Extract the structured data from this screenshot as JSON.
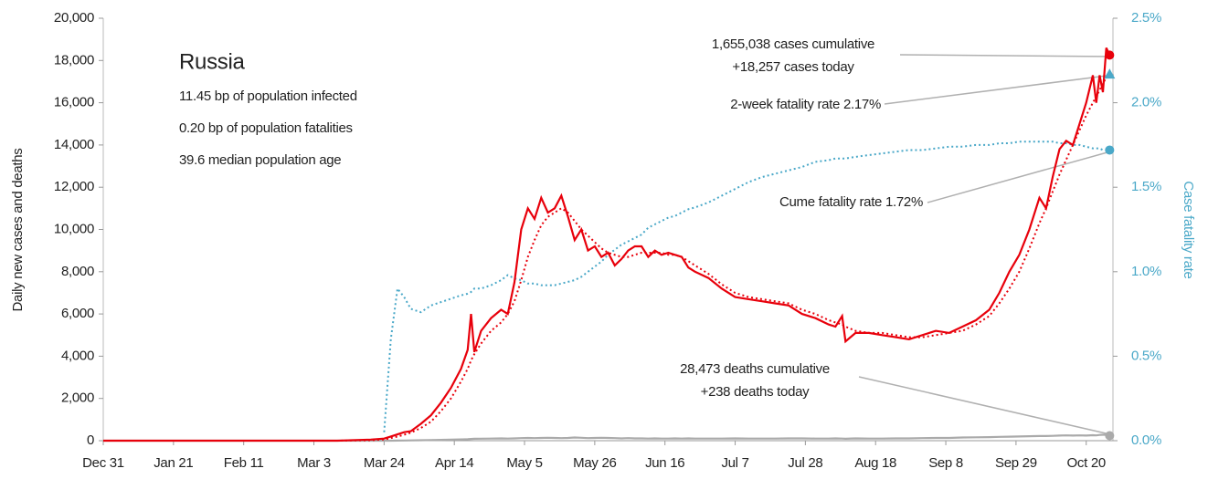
{
  "chart_data": {
    "type": "line",
    "title": "Russia",
    "info": [
      "11.45 bp of population infected",
      "0.20 bp of population fatalities",
      "39.6 median population age"
    ],
    "ylabel": "Daily new cases and deaths",
    "y2label": "Case fatality rate",
    "annotations": [
      "1,655,038 cases cumulative",
      "+18,257 cases today",
      "2-week fatality rate 2.17%",
      "Cume fatality rate 1.72%",
      "28,473 deaths cumulative",
      "+238 deaths today"
    ],
    "two_week_fatality_rate": 2.17,
    "two_week_color": "#4aa8c8",
    "xlim": [
      0,
      302
    ],
    "xticks": [
      {
        "value": 0,
        "label": "Dec 31"
      },
      {
        "value": 21,
        "label": "Jan 21"
      },
      {
        "value": 42,
        "label": "Feb 11"
      },
      {
        "value": 63,
        "label": "Mar 3"
      },
      {
        "value": 84,
        "label": "Mar 24"
      },
      {
        "value": 105,
        "label": "Apr 14"
      },
      {
        "value": 126,
        "label": "May 5"
      },
      {
        "value": 147,
        "label": "May 26"
      },
      {
        "value": 168,
        "label": "Jun 16"
      },
      {
        "value": 189,
        "label": "Jul 7"
      },
      {
        "value": 210,
        "label": "Jul 28"
      },
      {
        "value": 231,
        "label": "Aug 18"
      },
      {
        "value": 252,
        "label": "Sep 8"
      },
      {
        "value": 273,
        "label": "Sep 29"
      },
      {
        "value": 294,
        "label": "Oct 20"
      }
    ],
    "ylim": [
      0,
      20000
    ],
    "yticks": [
      0,
      {
        "value": 2000,
        "label": "2,000"
      },
      {
        "value": 4000,
        "label": "4,000"
      },
      {
        "value": 6000,
        "label": "6,000"
      },
      {
        "value": 8000,
        "label": "8,000"
      },
      {
        "value": 10000,
        "label": "10,000"
      },
      {
        "value": 12000,
        "label": "12,000"
      },
      {
        "value": 14000,
        "label": "14,000"
      },
      {
        "value": 16000,
        "label": "16,000"
      },
      {
        "value": 18000,
        "label": "18,000"
      },
      {
        "value": 20000,
        "label": "20,000"
      }
    ],
    "y2lim": [
      0,
      2.5
    ],
    "y2ticks": [
      {
        "value": 0,
        "label": "0.0%"
      },
      {
        "value": 0.5,
        "label": "0.5%"
      },
      {
        "value": 1,
        "label": "1.0%"
      },
      {
        "value": 1.5,
        "label": "1.5%"
      },
      {
        "value": 2,
        "label": "2.0%"
      },
      {
        "value": 2.5,
        "label": "2.5%"
      }
    ],
    "x": [
      0,
      10,
      20,
      30,
      40,
      50,
      60,
      70,
      80,
      84,
      86,
      88,
      90,
      92,
      95,
      98,
      101,
      104,
      107,
      109,
      110,
      111,
      113,
      116,
      119,
      121,
      123,
      125,
      127,
      129,
      131,
      133,
      135,
      137,
      139,
      141,
      143,
      145,
      147,
      149,
      151,
      153,
      155,
      157,
      159,
      161,
      163,
      165,
      167,
      169,
      171,
      173,
      175,
      177,
      181,
      185,
      189,
      193,
      197,
      201,
      205,
      209,
      213,
      217,
      219,
      221,
      222,
      225,
      229,
      233,
      237,
      241,
      245,
      249,
      253,
      257,
      261,
      265,
      268,
      271,
      274,
      277,
      280,
      282,
      284,
      286,
      288,
      290,
      292,
      294,
      296,
      297,
      298,
      299,
      300,
      301
    ],
    "series": [
      {
        "color": "#e8000b",
        "dotted": false,
        "end_marker": "circle",
        "values": [
          0,
          0,
          0,
          0,
          0,
          0,
          0,
          0,
          50,
          100,
          200,
          300,
          400,
          450,
          800,
          1200,
          1800,
          2500,
          3400,
          4300,
          6000,
          4200,
          5200,
          5800,
          6200,
          6000,
          7500,
          10000,
          11000,
          10500,
          11500,
          10800,
          11000,
          11600,
          10600,
          9500,
          10000,
          9000,
          9200,
          8700,
          8900,
          8300,
          8600,
          9000,
          9200,
          9200,
          8700,
          9000,
          8800,
          8900,
          8800,
          8700,
          8200,
          8000,
          7700,
          7200,
          6800,
          6700,
          6600,
          6500,
          6400,
          6000,
          5800,
          5500,
          5400,
          5900,
          4700,
          5100,
          5100,
          5000,
          4900,
          4800,
          5000,
          5200,
          5100,
          5400,
          5700,
          6200,
          7000,
          8000,
          8800,
          10000,
          11500,
          11000,
          12500,
          13800,
          14200,
          14000,
          15000,
          16000,
          17300,
          16000,
          17300,
          16500,
          18600,
          18257
        ]
      },
      {
        "color": "#e8000b",
        "dotted": true,
        "values": [
          0,
          0,
          0,
          0,
          0,
          0,
          0,
          0,
          20,
          60,
          120,
          200,
          280,
          380,
          600,
          900,
          1400,
          2000,
          2800,
          3400,
          3800,
          4100,
          4600,
          5200,
          5600,
          6000,
          6600,
          7600,
          8700,
          9500,
          10200,
          10600,
          10800,
          11000,
          10800,
          10400,
          10000,
          9700,
          9400,
          9100,
          8900,
          8800,
          8700,
          8700,
          8800,
          8900,
          8900,
          8900,
          8900,
          8800,
          8800,
          8700,
          8500,
          8300,
          7900,
          7400,
          7000,
          6800,
          6700,
          6600,
          6500,
          6200,
          6000,
          5700,
          5600,
          5500,
          5400,
          5200,
          5100,
          5100,
          5000,
          4900,
          4900,
          5000,
          5100,
          5200,
          5500,
          5900,
          6500,
          7200,
          8000,
          9100,
          10300,
          11000,
          11800,
          12600,
          13300,
          14000,
          14700,
          15400,
          16000,
          16300,
          16600,
          16900,
          17200,
          17400
        ]
      },
      {
        "color": "#4aa8c8",
        "dotted": true,
        "axis": "y2",
        "end_marker": "circle",
        "values": [
          null,
          null,
          null,
          null,
          null,
          null,
          null,
          null,
          null,
          0.05,
          0.6,
          0.9,
          0.85,
          0.78,
          0.76,
          0.8,
          0.82,
          0.84,
          0.86,
          0.87,
          0.88,
          0.9,
          0.9,
          0.92,
          0.95,
          0.98,
          0.96,
          0.95,
          0.93,
          0.93,
          0.92,
          0.92,
          0.92,
          0.93,
          0.94,
          0.95,
          0.97,
          1.0,
          1.03,
          1.06,
          1.1,
          1.13,
          1.16,
          1.18,
          1.2,
          1.22,
          1.26,
          1.28,
          1.3,
          1.32,
          1.33,
          1.35,
          1.37,
          1.38,
          1.41,
          1.45,
          1.49,
          1.53,
          1.56,
          1.58,
          1.6,
          1.62,
          1.65,
          1.66,
          1.67,
          1.67,
          1.67,
          1.68,
          1.69,
          1.7,
          1.71,
          1.72,
          1.72,
          1.73,
          1.74,
          1.74,
          1.75,
          1.75,
          1.76,
          1.76,
          1.77,
          1.77,
          1.77,
          1.77,
          1.77,
          1.76,
          1.76,
          1.75,
          1.75,
          1.74,
          1.73,
          1.73,
          1.73,
          1.72,
          1.72,
          1.72
        ]
      },
      {
        "color": "#aaaaaa",
        "dotted": false,
        "end_marker": "circle",
        "values": [
          0,
          0,
          0,
          0,
          0,
          0,
          0,
          0,
          0,
          0,
          2,
          5,
          10,
          15,
          20,
          30,
          40,
          50,
          60,
          70,
          80,
          90,
          95,
          100,
          110,
          100,
          110,
          120,
          130,
          120,
          130,
          140,
          130,
          120,
          130,
          150,
          140,
          120,
          130,
          140,
          130,
          120,
          110,
          120,
          110,
          110,
          100,
          110,
          100,
          100,
          110,
          100,
          110,
          100,
          100,
          100,
          110,
          100,
          100,
          100,
          110,
          110,
          100,
          100,
          110,
          100,
          90,
          110,
          100,
          100,
          110,
          110,
          120,
          130,
          130,
          150,
          160,
          170,
          180,
          190,
          200,
          210,
          220,
          220,
          230,
          240,
          250,
          240,
          250,
          240,
          260,
          250,
          270,
          280,
          280,
          238
        ]
      }
    ]
  }
}
